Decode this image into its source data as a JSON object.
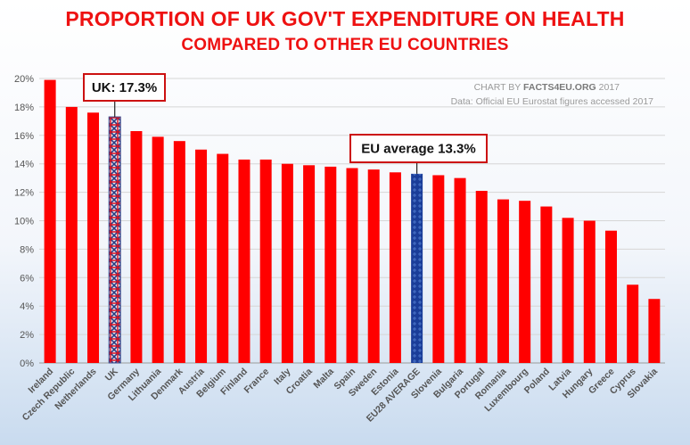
{
  "chart_data": {
    "type": "bar",
    "title": "PROPORTION OF UK GOV'T EXPENDITURE ON HEALTH",
    "subtitle": "COMPARED TO OTHER EU COUNTRIES",
    "credit_prefix": "CHART BY ",
    "credit_brand": "FACTS4EU.ORG",
    "credit_year": " 2017",
    "source": "Data: Official EU Eurostat figures accessed 2017",
    "categories": [
      "Ireland",
      "Czech Republic",
      "Netherlands",
      "UK",
      "Germany",
      "Lithuania",
      "Denmark",
      "Austria",
      "Belgium",
      "Finland",
      "France",
      "Italy",
      "Croatia",
      "Malta",
      "Spain",
      "Sweden",
      "Estonia",
      "EU28 AVERAGE",
      "Slovenia",
      "Bulgaria",
      "Portugal",
      "Romania",
      "Luxembourg",
      "Poland",
      "Latvia",
      "Hungary",
      "Greece",
      "Cyprus",
      "Slovakia"
    ],
    "values": [
      19.9,
      18.0,
      17.6,
      17.3,
      16.3,
      15.9,
      15.6,
      15.0,
      14.7,
      14.3,
      14.3,
      14.0,
      13.9,
      13.8,
      13.7,
      13.6,
      13.4,
      13.3,
      13.2,
      13.0,
      12.1,
      11.5,
      11.4,
      11.0,
      10.2,
      10.0,
      9.3,
      5.5,
      4.5
    ],
    "ylim": [
      0,
      20
    ],
    "yticks": [
      "0%",
      "2%",
      "4%",
      "6%",
      "8%",
      "10%",
      "12%",
      "14%",
      "16%",
      "18%",
      "20%"
    ],
    "grid": true,
    "colors": {
      "default": "#ff0000",
      "uk": "#3b4d8f",
      "eu": "#1a3d99",
      "title": "#ee1111"
    },
    "annotations": [
      {
        "label": "UK: 17.3%",
        "category": "UK"
      },
      {
        "label": "EU average 13.3%",
        "category": "EU28 AVERAGE"
      }
    ]
  }
}
